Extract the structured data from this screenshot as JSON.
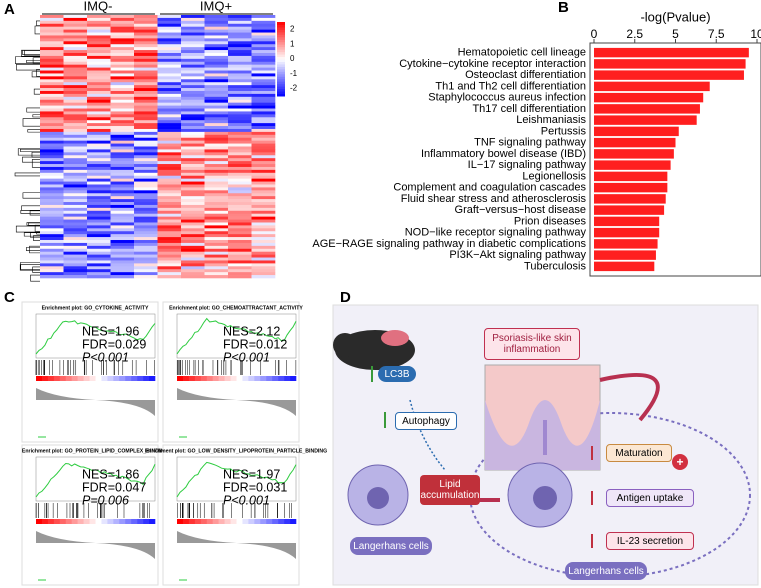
{
  "panels": [
    "A",
    "B",
    "C",
    "D"
  ],
  "chart_data": [
    {
      "type": "heatmap",
      "groups": [
        "IMQ-",
        "IMQ+"
      ],
      "colorbar_lim": [
        -2.5,
        2.5
      ],
      "colorbar_ticks": [
        2,
        1,
        0,
        -1,
        -2
      ]
    },
    {
      "type": "hbar",
      "title": "-log(Pvalue)",
      "categories": [
        "Hematopoietic cell lineage",
        "Cytokine−cytokine receptor interaction",
        "Osteoclast differentiation",
        "Th1 and Th2 cell differentiation",
        "Staphylococcus aureus infection",
        "Th17 cell differentiation",
        "Leishmaniasis",
        "Pertussis",
        "TNF signaling pathway",
        "Inflammatory bowel disease (IBD)",
        "IL−17 signaling pathway",
        "Legionellosis",
        "Complement and coagulation cascades",
        "Fluid shear stress and atherosclerosis",
        "Graft−versus−host disease",
        "Prion diseases",
        "NOD−like receptor signaling pathway",
        "AGE−RAGE signaling pathway in diabetic complications",
        "PI3K−Akt signaling pathway",
        "Tuberculosis"
      ],
      "values": [
        9.5,
        9.3,
        9.2,
        7.1,
        6.7,
        6.5,
        6.3,
        5.2,
        5.0,
        4.9,
        4.7,
        4.5,
        4.5,
        4.4,
        4.3,
        4.0,
        4.0,
        3.9,
        3.8,
        3.7
      ],
      "color": "#ff1f1f",
      "xlim": [
        0,
        10
      ],
      "xticks": [
        0,
        2.5,
        5,
        7.5,
        10
      ]
    }
  ],
  "gsea": [
    {
      "title": "Enrichment plot: GO_CYTOKINE_ACTIVITY",
      "nes": "NES=1.96",
      "fdr": "FDR=0.029",
      "p": "P<0.001"
    },
    {
      "title": "Enrichment plot: GO_CHEMOATTRACTANT_ACTIVITY",
      "nes": "NES=2.12",
      "fdr": "FDR=0.012",
      "p": "P<0.001"
    },
    {
      "title": "Enrichment plot: GO_PROTEIN_LIPID_COMPLEX_BINDING",
      "nes": "NES=1.86",
      "fdr": "FDR=0.047",
      "p": "P=0.006"
    },
    {
      "title": "Enrichment plot: GO_LOW_DENSITY_LIPOPROTEIN_PARTICLE_BINDING",
      "nes": "NES=1.97",
      "fdr": "FDR=0.031",
      "p": "P<0.001"
    }
  ],
  "diagram": {
    "skin": "Psoriasis-like skin inflammation",
    "lc3b": "LC3B",
    "autophagy": "Autophagy",
    "lipid": "Lipid accumulation",
    "cells_left": "Langerhans cells",
    "cells_right": "Langerhans cells",
    "maturation": "Maturation",
    "uptake": "Antigen uptake",
    "il23": "IL-23 secretion",
    "plus": "+"
  }
}
